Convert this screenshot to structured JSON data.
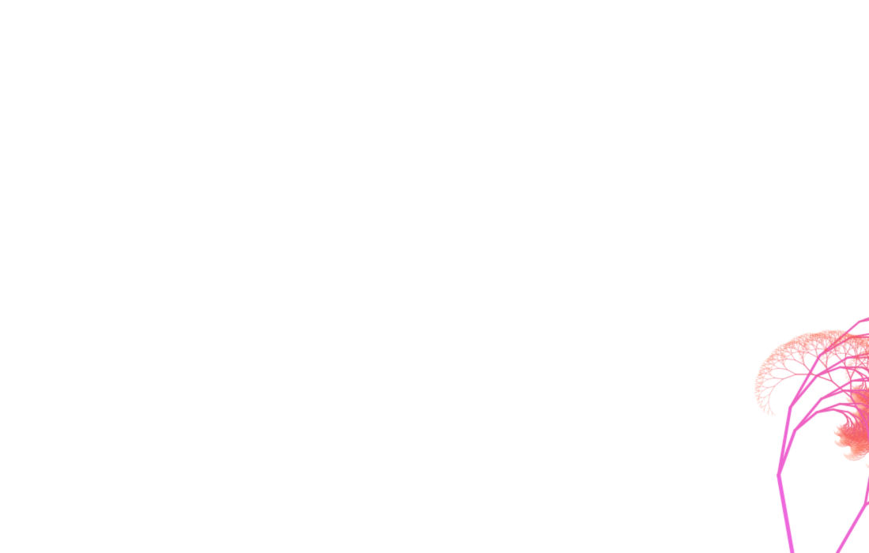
{
  "scene": {
    "subject": "fractal-tree",
    "background_color": "#ffffff",
    "trunk_color": "#ee66dd",
    "tip_color": "#ff6633",
    "mid_color": "#f05a7a",
    "branch_angles_deg": [
      -9,
      30
    ],
    "branch_scale": [
      0.87,
      0.6
    ],
    "max_depth": 16
  }
}
